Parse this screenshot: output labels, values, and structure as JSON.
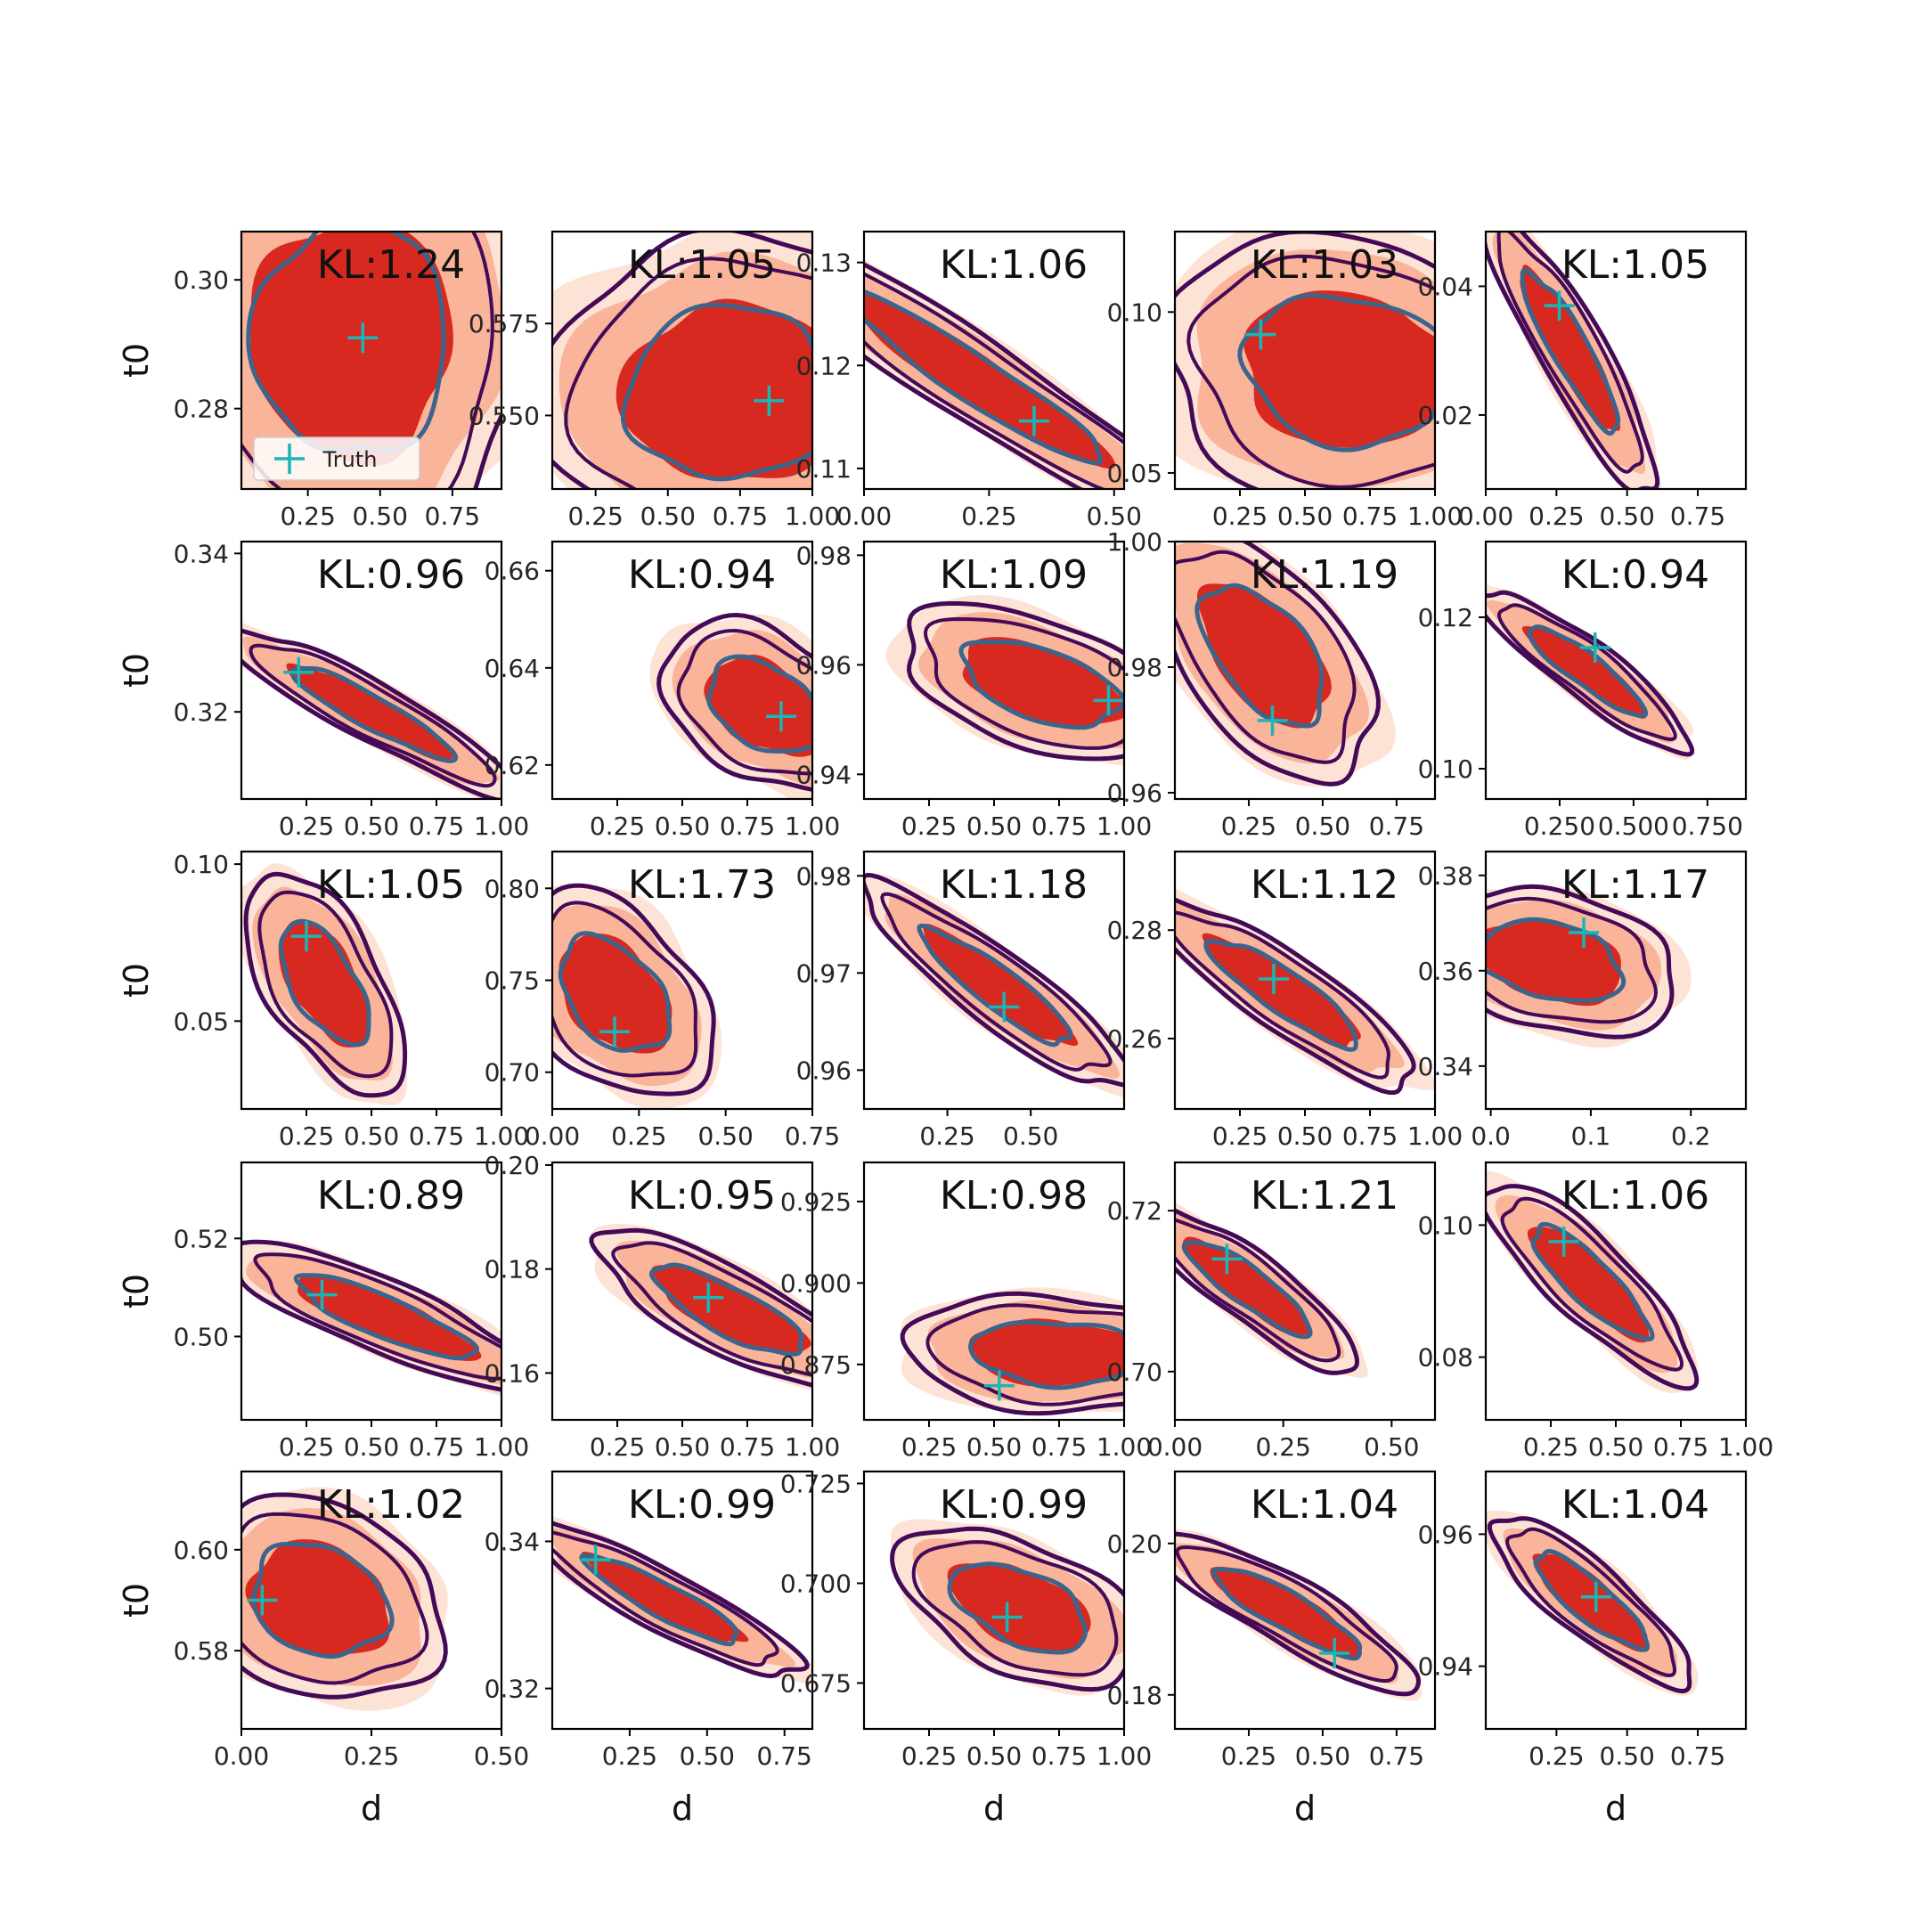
{
  "colors": {
    "fill_outer": "#fde3d6",
    "fill_mid": "#f9b49a",
    "fill_inner": "#d7291f",
    "contour_outer": "#440a57",
    "contour_inner": "#3b658c",
    "truth": "#19b6b6"
  },
  "legend": {
    "label": "Truth"
  },
  "chart_data": [
    {
      "type": "scatter",
      "kl": "KL:1.24",
      "xlabel": "",
      "ylabel": "t0",
      "xticks": [
        "0.25",
        "0.50",
        "0.75"
      ],
      "xlim": [
        0.02,
        0.92
      ],
      "yticks": [
        "0.28",
        "0.30"
      ],
      "ylim": [
        0.2675,
        0.3075
      ],
      "center": [
        0.4,
        0.291
      ],
      "spread": [
        0.26,
        0.014
      ],
      "corr": 0.0,
      "truth": [
        0.44,
        0.291
      ],
      "show_legend": true
    },
    {
      "type": "scatter",
      "kl": "KL:1.05",
      "xlabel": "",
      "ylabel": "",
      "xticks": [
        "0.25",
        "0.50",
        "0.75",
        "1.00"
      ],
      "xlim": [
        0.1,
        1.0
      ],
      "yticks": [
        "0.550",
        "0.575"
      ],
      "ylim": [
        0.53,
        0.6
      ],
      "center": [
        0.72,
        0.556
      ],
      "spread": [
        0.28,
        0.018
      ],
      "corr": 0.0,
      "truth": [
        0.85,
        0.554
      ],
      "show_legend": false
    },
    {
      "type": "scatter",
      "kl": "KL:1.06",
      "xlabel": "",
      "ylabel": "",
      "xticks": [
        "0.00",
        "0.25",
        "0.50"
      ],
      "xlim": [
        0.0,
        0.52
      ],
      "yticks": [
        "0.11",
        "0.12",
        "0.13"
      ],
      "ylim": [
        0.108,
        0.133
      ],
      "center": [
        0.22,
        0.1188
      ],
      "spread": [
        0.2,
        0.0065
      ],
      "corr": -0.95,
      "truth": [
        0.34,
        0.1146
      ],
      "show_legend": false
    },
    {
      "type": "scatter",
      "kl": "KL:1.03",
      "xlabel": "",
      "ylabel": "",
      "xticks": [
        "0.25",
        "0.50",
        "0.75",
        "1.00"
      ],
      "xlim": [
        0.0,
        1.0
      ],
      "yticks": [
        "0.05",
        "0.10"
      ],
      "ylim": [
        0.045,
        0.125
      ],
      "center": [
        0.66,
        0.082
      ],
      "spread": [
        0.3,
        0.018
      ],
      "corr": -0.1,
      "truth": [
        0.33,
        0.093
      ],
      "show_legend": false
    },
    {
      "type": "scatter",
      "kl": "KL:1.05",
      "xlabel": "",
      "ylabel": "",
      "xticks": [
        "0.00",
        "0.25",
        "0.50",
        "0.75"
      ],
      "xlim": [
        0.0,
        0.92
      ],
      "yticks": [
        "0.02",
        "0.04"
      ],
      "ylim": [
        0.0085,
        0.0485
      ],
      "center": [
        0.3,
        0.03
      ],
      "spread": [
        0.13,
        0.0095
      ],
      "corr": -0.9,
      "truth": [
        0.26,
        0.037
      ],
      "show_legend": false
    },
    {
      "type": "scatter",
      "kl": "KL:0.96",
      "xlabel": "",
      "ylabel": "t0",
      "xticks": [
        "0.25",
        "0.50",
        "0.75",
        "1.00"
      ],
      "xlim": [
        0.0,
        1.0
      ],
      "yticks": [
        "0.32",
        "0.34"
      ],
      "ylim": [
        0.309,
        0.3415
      ],
      "center": [
        0.5,
        0.32
      ],
      "spread": [
        0.24,
        0.0045
      ],
      "corr": -0.92,
      "truth": [
        0.22,
        0.325
      ],
      "show_legend": false
    },
    {
      "type": "scatter",
      "kl": "KL:0.94",
      "xlabel": "",
      "ylabel": "",
      "xticks": [
        "0.25",
        "0.50",
        "0.75",
        "1.00"
      ],
      "xlim": [
        0.0,
        1.0
      ],
      "yticks": [
        "0.62",
        "0.64",
        "0.66"
      ],
      "ylim": [
        0.613,
        0.666
      ],
      "center": [
        0.82,
        0.632
      ],
      "spread": [
        0.17,
        0.0075
      ],
      "corr": -0.4,
      "truth": [
        0.88,
        0.63
      ],
      "show_legend": false
    },
    {
      "type": "scatter",
      "kl": "KL:1.09",
      "xlabel": "",
      "ylabel": "",
      "xticks": [
        "0.25",
        "0.50",
        "0.75",
        "1.00"
      ],
      "xlim": [
        0.0,
        1.0
      ],
      "yticks": [
        "0.94",
        "0.96",
        "0.98"
      ],
      "ylim": [
        0.9355,
        0.9825
      ],
      "center": [
        0.68,
        0.9565
      ],
      "spread": [
        0.23,
        0.006
      ],
      "corr": -0.5,
      "truth": [
        0.94,
        0.9535
      ],
      "show_legend": false
    },
    {
      "type": "scatter",
      "kl": "KL:1.19",
      "xlabel": "",
      "ylabel": "",
      "xticks": [
        "0.25",
        "0.50",
        "0.75"
      ],
      "xlim": [
        0.0,
        0.88
      ],
      "yticks": [
        "0.96",
        "0.98",
        "1.00"
      ],
      "ylim": [
        0.959,
        1.0
      ],
      "center": [
        0.3,
        0.982
      ],
      "spread": [
        0.16,
        0.0085
      ],
      "corr": -0.55,
      "truth": [
        0.33,
        0.9715
      ],
      "show_legend": false
    },
    {
      "type": "scatter",
      "kl": "KL:0.94",
      "xlabel": "",
      "ylabel": "",
      "xticks": [
        "0.250",
        "0.500",
        "0.750"
      ],
      "xlim": [
        0.0,
        0.88
      ],
      "yticks": [
        "0.10",
        "0.12"
      ],
      "ylim": [
        0.096,
        0.13
      ],
      "center": [
        0.34,
        0.113
      ],
      "spread": [
        0.15,
        0.0045
      ],
      "corr": -0.9,
      "truth": [
        0.37,
        0.116
      ],
      "show_legend": false
    },
    {
      "type": "scatter",
      "kl": "KL:1.05",
      "xlabel": "",
      "ylabel": "t0",
      "xticks": [
        "0.25",
        "0.50",
        "0.75",
        "1.00"
      ],
      "xlim": [
        0.0,
        1.0
      ],
      "yticks": [
        "0.05",
        "0.10"
      ],
      "ylim": [
        0.022,
        0.104
      ],
      "center": [
        0.32,
        0.062
      ],
      "spread": [
        0.13,
        0.015
      ],
      "corr": -0.6,
      "truth": [
        0.25,
        0.077
      ],
      "show_legend": false
    },
    {
      "type": "scatter",
      "kl": "KL:1.73",
      "xlabel": "",
      "ylabel": "",
      "xticks": [
        "0.00",
        "0.25",
        "0.50",
        "0.75"
      ],
      "xlim": [
        0.0,
        0.75
      ],
      "yticks": [
        "0.70",
        "0.75",
        "0.80"
      ],
      "ylim": [
        0.68,
        0.82
      ],
      "center": [
        0.18,
        0.742
      ],
      "spread": [
        0.12,
        0.024
      ],
      "corr": -0.4,
      "truth": [
        0.18,
        0.722
      ],
      "show_legend": false
    },
    {
      "type": "scatter",
      "kl": "KL:1.18",
      "xlabel": "",
      "ylabel": "",
      "xticks": [
        "0.25",
        "0.50"
      ],
      "xlim": [
        0.0,
        0.78
      ],
      "yticks": [
        "0.96",
        "0.97",
        "0.98"
      ],
      "ylim": [
        0.956,
        0.9825
      ],
      "center": [
        0.4,
        0.9685
      ],
      "spread": [
        0.17,
        0.0045
      ],
      "corr": -0.9,
      "truth": [
        0.42,
        0.9665
      ],
      "show_legend": false
    },
    {
      "type": "scatter",
      "kl": "KL:1.12",
      "xlabel": "",
      "ylabel": "",
      "xticks": [
        "0.25",
        "0.50",
        "0.75",
        "1.00"
      ],
      "xlim": [
        0.0,
        1.0
      ],
      "yticks": [
        "0.26",
        "0.28"
      ],
      "ylim": [
        0.247,
        0.2945
      ],
      "center": [
        0.42,
        0.2685
      ],
      "spread": [
        0.22,
        0.0075
      ],
      "corr": -0.88,
      "truth": [
        0.38,
        0.271
      ],
      "show_legend": false
    },
    {
      "type": "scatter",
      "kl": "KL:1.17",
      "xlabel": "",
      "ylabel": "",
      "xticks": [
        "0.0",
        "0.1",
        "0.2"
      ],
      "xlim": [
        -0.005,
        0.255
      ],
      "yticks": [
        "0.34",
        "0.36",
        "0.38"
      ],
      "ylim": [
        0.331,
        0.385
      ],
      "center": [
        0.06,
        0.362
      ],
      "spread": [
        0.055,
        0.0065
      ],
      "corr": -0.3,
      "truth": [
        0.093,
        0.368
      ],
      "show_legend": false
    },
    {
      "type": "scatter",
      "kl": "KL:0.89",
      "xlabel": "",
      "ylabel": "t0",
      "xticks": [
        "0.25",
        "0.50",
        "0.75",
        "1.00"
      ],
      "xlim": [
        0.0,
        1.0
      ],
      "yticks": [
        "0.50",
        "0.52"
      ],
      "ylim": [
        0.483,
        0.5355
      ],
      "center": [
        0.55,
        0.504
      ],
      "spread": [
        0.26,
        0.0065
      ],
      "corr": -0.85,
      "truth": [
        0.31,
        0.5085
      ],
      "show_legend": false
    },
    {
      "type": "scatter",
      "kl": "KL:0.95",
      "xlabel": "",
      "ylabel": "",
      "xticks": [
        "0.25",
        "0.50",
        "0.75",
        "1.00"
      ],
      "xlim": [
        0.0,
        1.0
      ],
      "yticks": [
        "0.16",
        "0.18",
        "0.20"
      ],
      "ylim": [
        0.151,
        0.2005
      ],
      "center": [
        0.68,
        0.172
      ],
      "spread": [
        0.22,
        0.0065
      ],
      "corr": -0.8,
      "truth": [
        0.6,
        0.1745
      ],
      "show_legend": false
    },
    {
      "type": "scatter",
      "kl": "KL:0.98",
      "xlabel": "",
      "ylabel": "",
      "xticks": [
        "0.25",
        "0.50",
        "0.75",
        "1.00"
      ],
      "xlim": [
        0.0,
        1.0
      ],
      "yticks": [
        "0.875",
        "0.900",
        "0.925"
      ],
      "ylim": [
        0.858,
        0.937
      ],
      "center": [
        0.74,
        0.8785
      ],
      "spread": [
        0.25,
        0.0075
      ],
      "corr": -0.1,
      "truth": [
        0.52,
        0.8685
      ],
      "show_legend": false
    },
    {
      "type": "scatter",
      "kl": "KL:1.21",
      "xlabel": "",
      "ylabel": "",
      "xticks": [
        "0.00",
        "0.25",
        "0.50"
      ],
      "xlim": [
        0.0,
        0.6
      ],
      "yticks": [
        "0.70",
        "0.72"
      ],
      "ylim": [
        0.694,
        0.726
      ],
      "center": [
        0.17,
        0.7105
      ],
      "spread": [
        0.11,
        0.0045
      ],
      "corr": -0.88,
      "truth": [
        0.12,
        0.714
      ],
      "show_legend": false
    },
    {
      "type": "scatter",
      "kl": "KL:1.06",
      "xlabel": "",
      "ylabel": "",
      "xticks": [
        "0.25",
        "0.50",
        "0.75",
        "1.00"
      ],
      "xlim": [
        0.0,
        1.0
      ],
      "yticks": [
        "0.08",
        "0.10"
      ],
      "ylim": [
        0.0705,
        0.1095
      ],
      "center": [
        0.4,
        0.0915
      ],
      "spread": [
        0.17,
        0.0065
      ],
      "corr": -0.85,
      "truth": [
        0.3,
        0.0975
      ],
      "show_legend": false
    },
    {
      "type": "scatter",
      "kl": "KL:1.02",
      "xlabel": "d",
      "ylabel": "t0",
      "xticks": [
        "0.00",
        "0.25",
        "0.50"
      ],
      "xlim": [
        0.0,
        0.5
      ],
      "yticks": [
        "0.58",
        "0.60"
      ],
      "ylim": [
        0.5645,
        0.6155
      ],
      "center": [
        0.15,
        0.59
      ],
      "spread": [
        0.1,
        0.0085
      ],
      "corr": -0.2,
      "truth": [
        0.04,
        0.59
      ],
      "show_legend": false
    },
    {
      "type": "scatter",
      "kl": "KL:0.99",
      "xlabel": "d",
      "ylabel": "",
      "xticks": [
        "0.25",
        "0.50",
        "0.75"
      ],
      "xlim": [
        0.0,
        0.84
      ],
      "yticks": [
        "0.32",
        "0.34"
      ],
      "ylim": [
        0.3145,
        0.3495
      ],
      "center": [
        0.36,
        0.332
      ],
      "spread": [
        0.19,
        0.0045
      ],
      "corr": -0.9,
      "truth": [
        0.14,
        0.3375
      ],
      "show_legend": false
    },
    {
      "type": "scatter",
      "kl": "KL:0.99",
      "xlabel": "d",
      "ylabel": "",
      "xticks": [
        "0.25",
        "0.50",
        "0.75",
        "1.00"
      ],
      "xlim": [
        0.0,
        1.0
      ],
      "yticks": [
        "0.675",
        "0.700",
        "0.725"
      ],
      "ylim": [
        0.6635,
        0.728
      ],
      "center": [
        0.6,
        0.694
      ],
      "spread": [
        0.2,
        0.0085
      ],
      "corr": -0.5,
      "truth": [
        0.55,
        0.6915
      ],
      "show_legend": false
    },
    {
      "type": "scatter",
      "kl": "KL:1.04",
      "xlabel": "d",
      "ylabel": "",
      "xticks": [
        "0.25",
        "0.50",
        "0.75"
      ],
      "xlim": [
        0.0,
        0.88
      ],
      "yticks": [
        "0.18",
        "0.20"
      ],
      "ylim": [
        0.1755,
        0.2095
      ],
      "center": [
        0.38,
        0.191
      ],
      "spread": [
        0.19,
        0.0045
      ],
      "corr": -0.88,
      "truth": [
        0.54,
        0.1855
      ],
      "show_legend": false
    },
    {
      "type": "scatter",
      "kl": "KL:1.04",
      "xlabel": "d",
      "ylabel": "",
      "xticks": [
        "0.25",
        "0.50",
        "0.75"
      ],
      "xlim": [
        0.0,
        0.92
      ],
      "yticks": [
        "0.94",
        "0.96"
      ],
      "ylim": [
        0.9305,
        0.9695
      ],
      "center": [
        0.37,
        0.95
      ],
      "spread": [
        0.15,
        0.0055
      ],
      "corr": -0.85,
      "truth": [
        0.39,
        0.9505
      ],
      "show_legend": false
    }
  ]
}
